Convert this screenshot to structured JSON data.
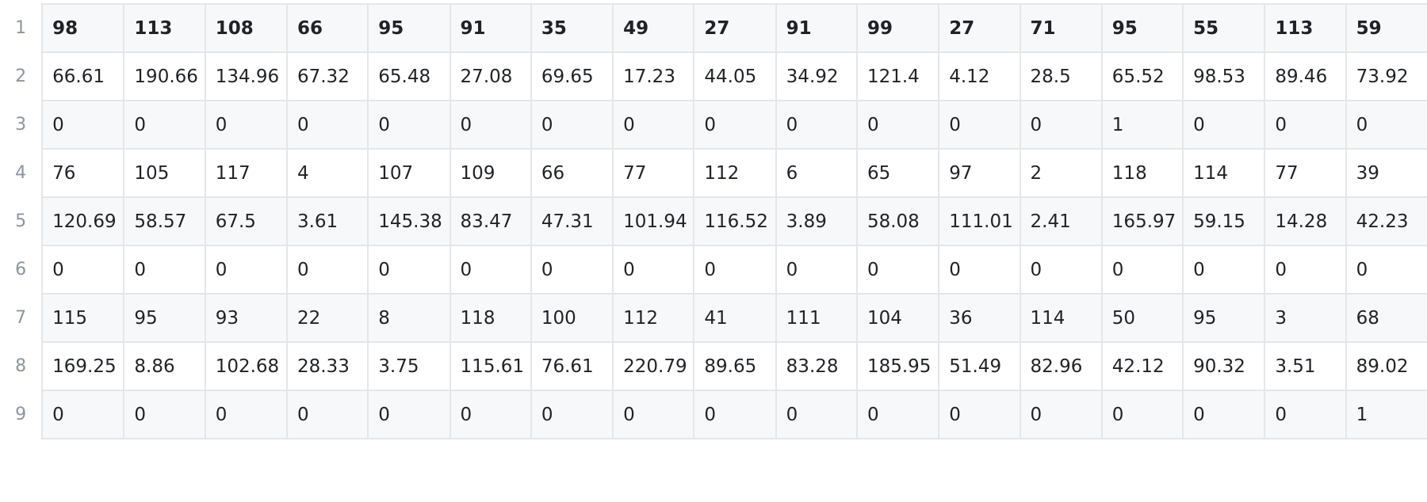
{
  "table": {
    "line_numbers": [
      "1",
      "2",
      "3",
      "4",
      "5",
      "6",
      "7",
      "8",
      "9"
    ],
    "rows": [
      [
        "98",
        "113",
        "108",
        "66",
        "95",
        "91",
        "35",
        "49",
        "27",
        "91",
        "99",
        "27",
        "71",
        "95",
        "55",
        "113",
        "59"
      ],
      [
        "66.61",
        "190.66",
        "134.96",
        "67.32",
        "65.48",
        "27.08",
        "69.65",
        "17.23",
        "44.05",
        "34.92",
        "121.4",
        "4.12",
        "28.5",
        "65.52",
        "98.53",
        "89.46",
        "73.92"
      ],
      [
        "0",
        "0",
        "0",
        "0",
        "0",
        "0",
        "0",
        "0",
        "0",
        "0",
        "0",
        "0",
        "0",
        "1",
        "0",
        "0",
        "0"
      ],
      [
        "76",
        "105",
        "117",
        "4",
        "107",
        "109",
        "66",
        "77",
        "112",
        "6",
        "65",
        "97",
        "2",
        "118",
        "114",
        "77",
        "39"
      ],
      [
        "120.69",
        "58.57",
        "67.5",
        "3.61",
        "145.38",
        "83.47",
        "47.31",
        "101.94",
        "116.52",
        "3.89",
        "58.08",
        "111.01",
        "2.41",
        "165.97",
        "59.15",
        "14.28",
        "42.23"
      ],
      [
        "0",
        "0",
        "0",
        "0",
        "0",
        "0",
        "0",
        "0",
        "0",
        "0",
        "0",
        "0",
        "0",
        "0",
        "0",
        "0",
        "0"
      ],
      [
        "115",
        "95",
        "93",
        "22",
        "8",
        "118",
        "100",
        "112",
        "41",
        "111",
        "104",
        "36",
        "114",
        "50",
        "95",
        "3",
        "68"
      ],
      [
        "169.25",
        "8.86",
        "102.68",
        "28.33",
        "3.75",
        "115.61",
        "76.61",
        "220.79",
        "89.65",
        "83.28",
        "185.95",
        "51.49",
        "82.96",
        "42.12",
        "90.32",
        "3.51",
        "89.02"
      ],
      [
        "0",
        "0",
        "0",
        "0",
        "0",
        "0",
        "0",
        "0",
        "0",
        "0",
        "0",
        "0",
        "0",
        "0",
        "0",
        "0",
        "1"
      ]
    ]
  }
}
